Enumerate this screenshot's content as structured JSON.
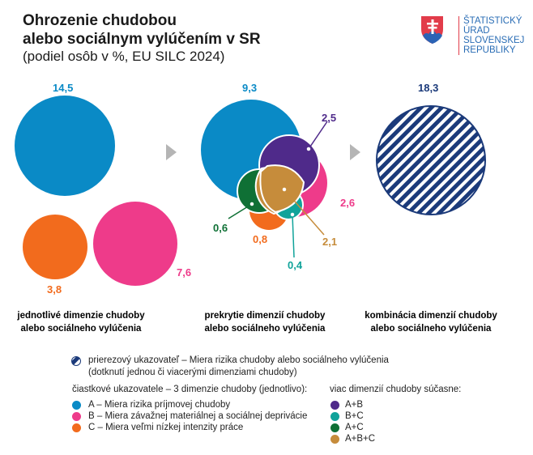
{
  "header": {
    "title_line1": "Ohrozenie chudobou",
    "title_line2": "alebo sociálnym vylúčením v SR",
    "subtitle": "(podiel osôb v %, EU SILC 2024)"
  },
  "logo": {
    "lines": [
      "ŠTATISTICKÝ",
      "ÚRAD",
      "SLOVENSKEJ",
      "REPUBLIKY"
    ]
  },
  "colors": {
    "A": "#0a8ac6",
    "B": "#ee3b8a",
    "C": "#f26b1d",
    "AB": "#4f2a8a",
    "BC": "#10a39a",
    "AC": "#0f7035",
    "ABC": "#c68c3b",
    "total": "#1b3a7a"
  },
  "chart_data": {
    "type": "venn",
    "panels": [
      {
        "caption": [
          "jednotlivé dimenzie chudoby",
          "alebo sociálneho vylúčenia"
        ],
        "values": {
          "A": "14,5",
          "B": "7,6",
          "C": "3,8"
        }
      },
      {
        "caption": [
          "prekrytie dimenzií chudoby",
          "alebo sociálneho vylúčenia"
        ],
        "values": {
          "A": "9,3",
          "AB": "2,5",
          "B": "2,6",
          "AC": "0,6",
          "C": "0,8",
          "ABC": "2,1",
          "BC": "0,4"
        }
      },
      {
        "caption": [
          "kombinácia dimenzií chudoby",
          "alebo sociálneho vylúčenia"
        ],
        "values": {
          "total": "18,3"
        }
      }
    ]
  },
  "legend": {
    "total_line1": "prierezový ukazovateľ – Miera rizika chudoby alebo sociálneho vylúčenia",
    "total_line2": "(dotknutí jednou či viacerými dimenziami chudoby)",
    "single_heading": "čiastkové ukazovatele – 3 dimenzie chudoby (jednotlivo):",
    "single": [
      "A – Miera rizika príjmovej chudoby",
      "B – Miera závažnej materiálnej a sociálnej deprivácie",
      "C – Miera veľmi nízkej intenzity práce"
    ],
    "multi_heading": "viac dimenzií chudoby súčasne:",
    "multi": [
      "A+B",
      "B+C",
      "A+C",
      "A+B+C"
    ]
  }
}
